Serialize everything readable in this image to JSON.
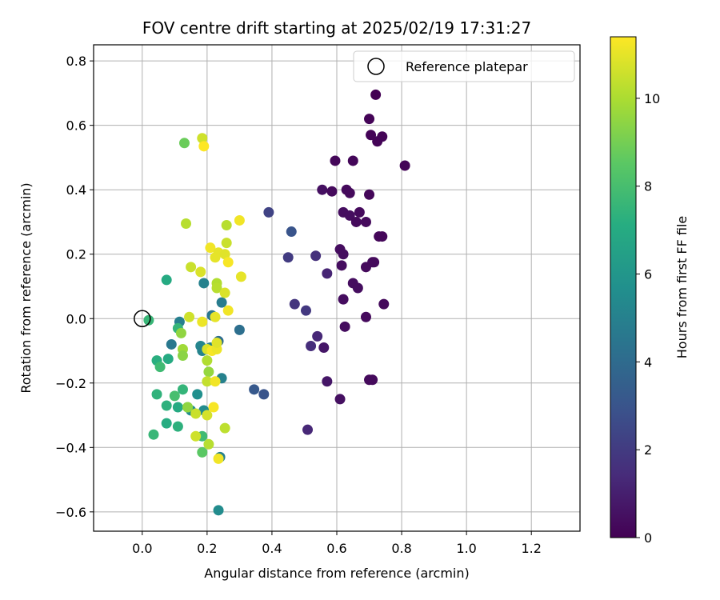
{
  "chart_data": {
    "type": "scatter",
    "title": "FOV centre drift starting at 2025/02/19 17:31:27",
    "xlabel": "Angular distance from reference (arcmin)",
    "ylabel": "Rotation from reference (arcmin)",
    "xlim": [
      -0.15,
      1.35
    ],
    "ylim": [
      -0.66,
      0.85
    ],
    "xticks": [
      "0.0",
      "0.2",
      "0.4",
      "0.6",
      "0.8",
      "1.0",
      "1.2"
    ],
    "xtick_values": [
      0.0,
      0.2,
      0.4,
      0.6,
      0.8,
      1.0,
      1.2
    ],
    "yticks": [
      "0.8",
      "0.6",
      "0.4",
      "0.2",
      "0.0",
      "−0.2",
      "−0.4",
      "−0.6"
    ],
    "ytick_values": [
      0.8,
      0.6,
      0.4,
      0.2,
      0.0,
      -0.2,
      -0.4,
      -0.6
    ],
    "grid": true,
    "legend": {
      "placement": "top-right",
      "label": "Reference platepar"
    },
    "reference_point": {
      "x": 0.0,
      "y": 0.0
    },
    "colorbar": {
      "label": "Hours from first FF file",
      "range": [
        0,
        11.4
      ],
      "ticks": [
        "0",
        "2",
        "4",
        "6",
        "8",
        "10"
      ],
      "tick_values": [
        0,
        2,
        4,
        6,
        8,
        10
      ],
      "colormap": "viridis"
    },
    "points": [
      {
        "x": 0.72,
        "y": 0.695,
        "h": 0.0
      },
      {
        "x": 0.7,
        "y": 0.62,
        "h": 0.1
      },
      {
        "x": 0.705,
        "y": 0.57,
        "h": 0.1
      },
      {
        "x": 0.725,
        "y": 0.55,
        "h": 0.1
      },
      {
        "x": 0.74,
        "y": 0.565,
        "h": 0.1
      },
      {
        "x": 0.81,
        "y": 0.475,
        "h": 0.1
      },
      {
        "x": 0.595,
        "y": 0.49,
        "h": 0.2
      },
      {
        "x": 0.65,
        "y": 0.49,
        "h": 0.2
      },
      {
        "x": 0.555,
        "y": 0.4,
        "h": 0.5
      },
      {
        "x": 0.585,
        "y": 0.395,
        "h": 0.3
      },
      {
        "x": 0.63,
        "y": 0.4,
        "h": 0.3
      },
      {
        "x": 0.64,
        "y": 0.39,
        "h": 0.3
      },
      {
        "x": 0.7,
        "y": 0.385,
        "h": 0.2
      },
      {
        "x": 0.62,
        "y": 0.33,
        "h": 0.4
      },
      {
        "x": 0.64,
        "y": 0.32,
        "h": 0.4
      },
      {
        "x": 0.66,
        "y": 0.3,
        "h": 0.3
      },
      {
        "x": 0.67,
        "y": 0.33,
        "h": 0.3
      },
      {
        "x": 0.69,
        "y": 0.3,
        "h": 0.3
      },
      {
        "x": 0.73,
        "y": 0.255,
        "h": 0.2
      },
      {
        "x": 0.74,
        "y": 0.255,
        "h": 0.2
      },
      {
        "x": 0.61,
        "y": 0.215,
        "h": 0.4
      },
      {
        "x": 0.62,
        "y": 0.2,
        "h": 0.4
      },
      {
        "x": 0.615,
        "y": 0.165,
        "h": 0.4
      },
      {
        "x": 0.69,
        "y": 0.16,
        "h": 0.3
      },
      {
        "x": 0.71,
        "y": 0.175,
        "h": 0.3
      },
      {
        "x": 0.715,
        "y": 0.175,
        "h": 0.3
      },
      {
        "x": 0.57,
        "y": 0.14,
        "h": 1.2
      },
      {
        "x": 0.65,
        "y": 0.11,
        "h": 0.4
      },
      {
        "x": 0.665,
        "y": 0.095,
        "h": 0.4
      },
      {
        "x": 0.62,
        "y": 0.06,
        "h": 0.4
      },
      {
        "x": 0.745,
        "y": 0.045,
        "h": 0.3
      },
      {
        "x": 0.69,
        "y": 0.005,
        "h": 0.3
      },
      {
        "x": 0.625,
        "y": -0.025,
        "h": 0.4
      },
      {
        "x": 0.54,
        "y": -0.055,
        "h": 1.3
      },
      {
        "x": 0.56,
        "y": -0.09,
        "h": 0.7
      },
      {
        "x": 0.52,
        "y": -0.085,
        "h": 1.5
      },
      {
        "x": 0.57,
        "y": -0.195,
        "h": 0.7
      },
      {
        "x": 0.7,
        "y": -0.19,
        "h": 0.3
      },
      {
        "x": 0.71,
        "y": -0.19,
        "h": 0.3
      },
      {
        "x": 0.61,
        "y": -0.25,
        "h": 0.5
      },
      {
        "x": 0.51,
        "y": -0.345,
        "h": 1.3
      },
      {
        "x": 0.39,
        "y": 0.33,
        "h": 2.3
      },
      {
        "x": 0.46,
        "y": 0.27,
        "h": 3.0
      },
      {
        "x": 0.45,
        "y": 0.19,
        "h": 2.0
      },
      {
        "x": 0.535,
        "y": 0.195,
        "h": 1.6
      },
      {
        "x": 0.47,
        "y": 0.045,
        "h": 1.8
      },
      {
        "x": 0.505,
        "y": 0.025,
        "h": 1.9
      },
      {
        "x": 0.345,
        "y": -0.22,
        "h": 3.2
      },
      {
        "x": 0.375,
        "y": -0.235,
        "h": 3.0
      },
      {
        "x": 0.3,
        "y": -0.035,
        "h": 4.2
      },
      {
        "x": 0.245,
        "y": 0.05,
        "h": 4.8
      },
      {
        "x": 0.215,
        "y": 0.01,
        "h": 4.5
      },
      {
        "x": 0.19,
        "y": 0.11,
        "h": 5.0
      },
      {
        "x": 0.235,
        "y": -0.07,
        "h": 4.1
      },
      {
        "x": 0.18,
        "y": -0.085,
        "h": 5.2
      },
      {
        "x": 0.185,
        "y": -0.1,
        "h": 5.1
      },
      {
        "x": 0.21,
        "y": -0.09,
        "h": 5.0
      },
      {
        "x": 0.115,
        "y": -0.01,
        "h": 4.9
      },
      {
        "x": 0.09,
        "y": -0.08,
        "h": 4.6
      },
      {
        "x": 0.245,
        "y": -0.185,
        "h": 5.0
      },
      {
        "x": 0.17,
        "y": -0.235,
        "h": 5.7
      },
      {
        "x": 0.15,
        "y": -0.285,
        "h": 5.5
      },
      {
        "x": 0.19,
        "y": -0.285,
        "h": 5.5
      },
      {
        "x": 0.24,
        "y": -0.43,
        "h": 5.0
      },
      {
        "x": 0.235,
        "y": -0.595,
        "h": 5.5
      },
      {
        "x": 0.075,
        "y": 0.12,
        "h": 7.0
      },
      {
        "x": 0.02,
        "y": -0.005,
        "h": 7.6
      },
      {
        "x": 0.11,
        "y": -0.03,
        "h": 7.5
      },
      {
        "x": 0.045,
        "y": -0.13,
        "h": 7.2
      },
      {
        "x": 0.055,
        "y": -0.15,
        "h": 7.8
      },
      {
        "x": 0.08,
        "y": -0.125,
        "h": 7.0
      },
      {
        "x": 0.045,
        "y": -0.235,
        "h": 7.4
      },
      {
        "x": 0.075,
        "y": -0.27,
        "h": 7.3
      },
      {
        "x": 0.11,
        "y": -0.275,
        "h": 7.0
      },
      {
        "x": 0.125,
        "y": -0.22,
        "h": 7.5
      },
      {
        "x": 0.1,
        "y": -0.24,
        "h": 8.0
      },
      {
        "x": 0.14,
        "y": -0.275,
        "h": 8.5
      },
      {
        "x": 0.075,
        "y": -0.325,
        "h": 7.1
      },
      {
        "x": 0.11,
        "y": -0.335,
        "h": 7.3
      },
      {
        "x": 0.035,
        "y": -0.36,
        "h": 7.6
      },
      {
        "x": 0.185,
        "y": -0.365,
        "h": 7.8
      },
      {
        "x": 0.185,
        "y": -0.415,
        "h": 8.5
      },
      {
        "x": 0.13,
        "y": 0.545,
        "h": 8.8
      },
      {
        "x": 0.135,
        "y": 0.295,
        "h": 10.2
      },
      {
        "x": 0.185,
        "y": 0.56,
        "h": 10.6
      },
      {
        "x": 0.19,
        "y": 0.535,
        "h": 11.4
      },
      {
        "x": 0.15,
        "y": 0.16,
        "h": 10.5
      },
      {
        "x": 0.18,
        "y": 0.145,
        "h": 10.8
      },
      {
        "x": 0.21,
        "y": 0.22,
        "h": 11.2
      },
      {
        "x": 0.225,
        "y": 0.19,
        "h": 11.0
      },
      {
        "x": 0.235,
        "y": 0.205,
        "h": 11.0
      },
      {
        "x": 0.255,
        "y": 0.2,
        "h": 10.9
      },
      {
        "x": 0.26,
        "y": 0.235,
        "h": 10.5
      },
      {
        "x": 0.26,
        "y": 0.29,
        "h": 10.2
      },
      {
        "x": 0.3,
        "y": 0.305,
        "h": 11.2
      },
      {
        "x": 0.265,
        "y": 0.175,
        "h": 11.3
      },
      {
        "x": 0.305,
        "y": 0.13,
        "h": 11.0
      },
      {
        "x": 0.23,
        "y": 0.11,
        "h": 10.1
      },
      {
        "x": 0.23,
        "y": 0.095,
        "h": 10.2
      },
      {
        "x": 0.255,
        "y": 0.08,
        "h": 10.8
      },
      {
        "x": 0.265,
        "y": 0.025,
        "h": 11.2
      },
      {
        "x": 0.145,
        "y": 0.005,
        "h": 10.6
      },
      {
        "x": 0.185,
        "y": -0.01,
        "h": 11.1
      },
      {
        "x": 0.225,
        "y": 0.005,
        "h": 11.0
      },
      {
        "x": 0.12,
        "y": -0.045,
        "h": 9.5
      },
      {
        "x": 0.125,
        "y": -0.095,
        "h": 9.8
      },
      {
        "x": 0.125,
        "y": -0.115,
        "h": 9.4
      },
      {
        "x": 0.2,
        "y": -0.095,
        "h": 10.8
      },
      {
        "x": 0.215,
        "y": -0.1,
        "h": 11.3
      },
      {
        "x": 0.23,
        "y": -0.095,
        "h": 11.1
      },
      {
        "x": 0.23,
        "y": -0.075,
        "h": 10.9
      },
      {
        "x": 0.2,
        "y": -0.13,
        "h": 10.1
      },
      {
        "x": 0.205,
        "y": -0.165,
        "h": 9.6
      },
      {
        "x": 0.2,
        "y": -0.195,
        "h": 10.4
      },
      {
        "x": 0.225,
        "y": -0.195,
        "h": 11.2
      },
      {
        "x": 0.14,
        "y": -0.275,
        "h": 9.5
      },
      {
        "x": 0.165,
        "y": -0.295,
        "h": 10.5
      },
      {
        "x": 0.2,
        "y": -0.3,
        "h": 10.7
      },
      {
        "x": 0.22,
        "y": -0.275,
        "h": 11.3
      },
      {
        "x": 0.255,
        "y": -0.34,
        "h": 10.3
      },
      {
        "x": 0.165,
        "y": -0.365,
        "h": 10.6
      },
      {
        "x": 0.205,
        "y": -0.39,
        "h": 10.2
      },
      {
        "x": 0.235,
        "y": -0.435,
        "h": 11.2
      }
    ]
  }
}
